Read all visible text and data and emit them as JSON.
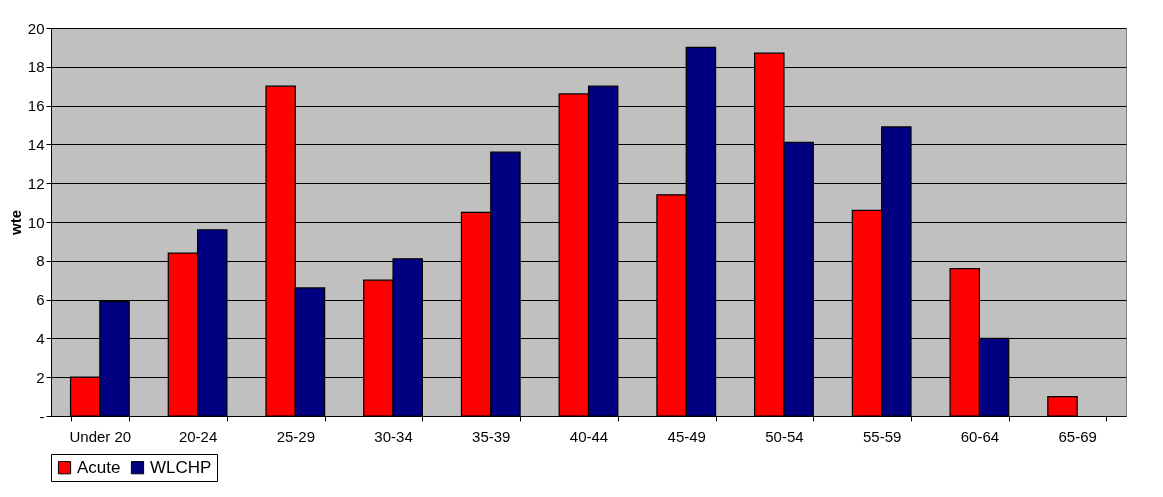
{
  "chart_data": {
    "type": "bar",
    "ylabel": "wte",
    "categories": [
      "Under 20",
      "20-24",
      "25-29",
      "30-34",
      "35-39",
      "40-44",
      "45-49",
      "50-54",
      "55-59",
      "60-64",
      "65-69"
    ],
    "series": [
      {
        "name": "Acute",
        "color": "#ff0000",
        "values": [
          2.0,
          8.4,
          17.0,
          7.0,
          10.5,
          16.6,
          11.4,
          18.7,
          10.6,
          7.6,
          1.0
        ]
      },
      {
        "name": "WLCHP",
        "color": "#000080",
        "values": [
          5.9,
          9.6,
          6.6,
          8.1,
          13.6,
          17.0,
          19.0,
          14.1,
          14.9,
          4.0,
          null
        ]
      }
    ],
    "ylim": [
      0,
      20
    ],
    "yticks": [
      {
        "value": 0,
        "label": "-"
      },
      2,
      4,
      6,
      8,
      10,
      12,
      14,
      16,
      18,
      20
    ],
    "grid": "y",
    "legend": "bottom"
  }
}
